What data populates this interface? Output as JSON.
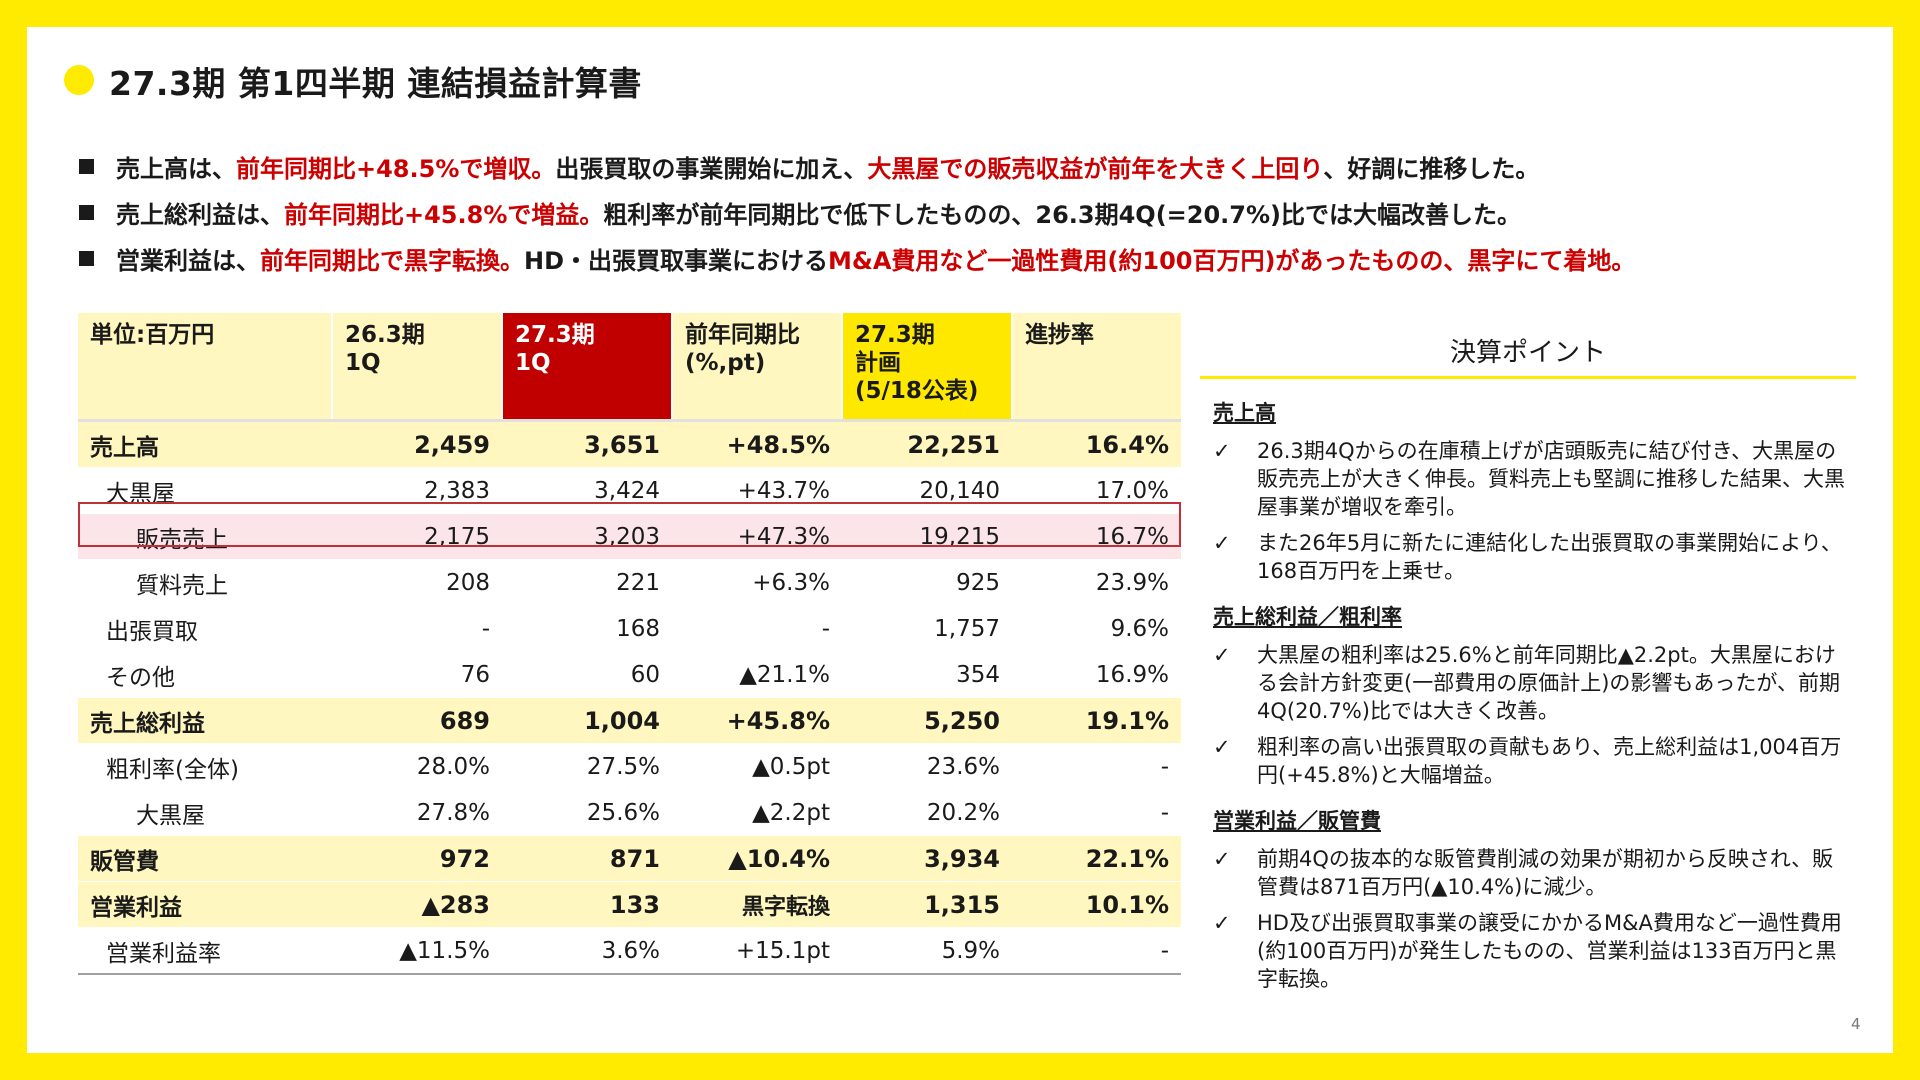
{
  "title": "27.3期 第1四半期 連結損益計算書",
  "bullets": [
    [
      {
        "text": "売上高は、",
        "red": false
      },
      {
        "text": "前年同期比+48.5%で増収。",
        "red": true
      },
      {
        "text": "出張買取の事業開始に加え、",
        "red": false
      },
      {
        "text": "大黒屋での販売収益が前年を大きく上回り",
        "red": true
      },
      {
        "text": "、好調に推移した。",
        "red": false
      }
    ],
    [
      {
        "text": "売上総利益は、",
        "red": false
      },
      {
        "text": "前年同期比+45.8%で増益。",
        "red": true
      },
      {
        "text": "粗利率が前年同期比で低下したものの、26.3期4Q(=20.7%)比では大幅改善した。",
        "red": false
      }
    ],
    [
      {
        "text": "営業利益は、",
        "red": false
      },
      {
        "text": "前年同期比で黒字転換。",
        "red": true
      },
      {
        "text": "HD・出張買取事業における",
        "red": false
      },
      {
        "text": "M&A費用など一過性費用(約100百万円)があったものの、黒字にて着地。",
        "red": true
      }
    ]
  ],
  "table": {
    "headers": {
      "unit": "単位:百万円",
      "prev_line1": "26.3期",
      "prev_line2": "1Q",
      "curr_line1": "27.3期",
      "curr_line2": "1Q",
      "yoy_line1": "前年同期比",
      "yoy_line2": "(%,pt)",
      "plan_line1": "27.3期",
      "plan_line2": "計画",
      "plan_line3": "(5/18公表)",
      "progress": "進捗率"
    },
    "rows": [
      {
        "label": "売上高",
        "prev": "2,459",
        "curr": "3,651",
        "yoy": "+48.5%",
        "plan": "22,251",
        "progress": "16.4%"
      },
      {
        "label": "大黒屋",
        "prev": "2,383",
        "curr": "3,424",
        "yoy": "+43.7%",
        "plan": "20,140",
        "progress": "17.0%"
      },
      {
        "label": "販売売上",
        "prev": "2,175",
        "curr": "3,203",
        "yoy": "+47.3%",
        "plan": "19,215",
        "progress": "16.7%"
      },
      {
        "label": "質料売上",
        "prev": "208",
        "curr": "221",
        "yoy": "+6.3%",
        "plan": "925",
        "progress": "23.9%"
      },
      {
        "label": "出張買取",
        "prev": "-",
        "curr": "168",
        "yoy": "-",
        "plan": "1,757",
        "progress": "9.6%"
      },
      {
        "label": "その他",
        "prev": "76",
        "curr": "60",
        "yoy": "▲21.1%",
        "plan": "354",
        "progress": "16.9%"
      },
      {
        "label": "売上総利益",
        "prev": "689",
        "curr": "1,004",
        "yoy": "+45.8%",
        "plan": "5,250",
        "progress": "19.1%"
      },
      {
        "label": "粗利率(全体)",
        "prev": "28.0%",
        "curr": "27.5%",
        "yoy": "▲0.5pt",
        "plan": "23.6%",
        "progress": "-"
      },
      {
        "label": "大黒屋",
        "prev": "27.8%",
        "curr": "25.6%",
        "yoy": "▲2.2pt",
        "plan": "20.2%",
        "progress": "-"
      },
      {
        "label": "販管費",
        "prev": "972",
        "curr": "871",
        "yoy": "▲10.4%",
        "plan": "3,934",
        "progress": "22.1%"
      },
      {
        "label": "営業利益",
        "prev": "▲283",
        "curr": "133",
        "yoy": "黒字転換",
        "plan": "1,315",
        "progress": "10.1%"
      },
      {
        "label": "営業利益率",
        "prev": "▲11.5%",
        "curr": "3.6%",
        "yoy": "+15.1pt",
        "plan": "5.9%",
        "progress": "-"
      }
    ]
  },
  "points": {
    "title": "決算ポイント",
    "check_icon": "check-mark-icon",
    "sections": [
      {
        "heading": "売上高",
        "items": [
          "26.3期4Qからの在庫積上げが店頭販売に結び付き、大黒屋の販売売上が大きく伸長。質料売上も堅調に推移した結果、大黒屋事業が増収を牽引。",
          "また26年5月に新たに連結化した出張買取の事業開始により、168百万円を上乗せ。"
        ]
      },
      {
        "heading": "売上総利益／粗利率",
        "items": [
          "大黒屋の粗利率は25.6%と前年同期比▲2.2pt。大黒屋における会計方針変更(一部費用の原価計上)の影響もあったが、前期4Q(20.7%)比では大きく改善。",
          "粗利率の高い出張買取の貢献もあり、売上総利益は1,004百万円(+45.8%)と大幅増益。"
        ]
      },
      {
        "heading": "営業利益／販管費",
        "items": [
          "前期4Qの抜本的な販管費削減の効果が期初から反映され、販管費は871百万円(▲10.4%)に減少。",
          "HD及び出張買取事業の譲受にかかるM&A費用など一過性費用(約100百万円)が発生したものの、営業利益は133百万円と黒字転換。"
        ]
      }
    ]
  },
  "page_number": "4"
}
